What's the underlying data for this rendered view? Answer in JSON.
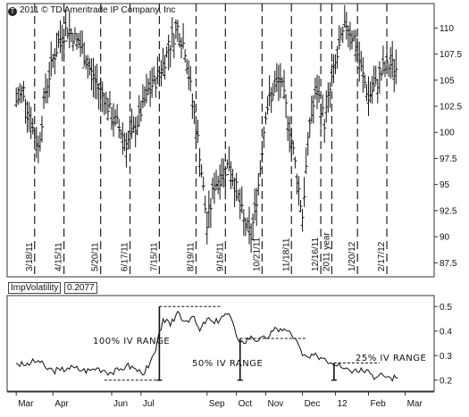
{
  "copyright": "2011 © TD Ameritrade IP Company, Inc",
  "chart_data": [
    {
      "type": "ohlc",
      "price_axis": {
        "ticks": [
          "110",
          "107.5",
          "105",
          "102.5",
          "100",
          "97.5",
          "95",
          "92.5",
          "90",
          "87.5"
        ],
        "ylim": [
          86.5,
          112
        ]
      },
      "date_markers": [
        {
          "label": "3/18/11",
          "x": 2.5
        },
        {
          "label": "4/15/11",
          "x": 6.5
        },
        {
          "label": "5/20/11",
          "x": 11.5
        },
        {
          "label": "6/17/11",
          "x": 15.5
        },
        {
          "label": "7/15/11",
          "x": 19.5
        },
        {
          "label": "8/19/11",
          "x": 24.5
        },
        {
          "label": "9/16/11",
          "x": 28.5
        },
        {
          "label": "10/21/11",
          "x": 33.5
        },
        {
          "label": "11/18/11",
          "x": 37.5
        },
        {
          "label": "12/16/11",
          "x": 41.5
        },
        {
          "label": "2011 year",
          "x": 43.0
        },
        {
          "label": "1/20/12",
          "x": 46.5
        },
        {
          "label": "2/17/12",
          "x": 50.5
        }
      ],
      "series": [
        {
          "points": [
            [
              0,
              103
            ],
            [
              1,
              104
            ],
            [
              2,
              101
            ],
            [
              3,
              98.5
            ],
            [
              4,
              104
            ],
            [
              5,
              107
            ],
            [
              6,
              109
            ],
            [
              7,
              110
            ],
            [
              8,
              109
            ],
            [
              9,
              108
            ],
            [
              10,
              106
            ],
            [
              11,
              104.5
            ],
            [
              12,
              103.5
            ],
            [
              13,
              101.5
            ],
            [
              14,
              100.5
            ],
            [
              15,
              99
            ],
            [
              16,
              100
            ],
            [
              17,
              102
            ],
            [
              18,
              104
            ],
            [
              19,
              105
            ],
            [
              20,
              106.5
            ],
            [
              21,
              108.5
            ],
            [
              22,
              110
            ],
            [
              23,
              108
            ],
            [
              24,
              103
            ],
            [
              25,
              98
            ],
            [
              26,
              91
            ],
            [
              27,
              95
            ],
            [
              28,
              96
            ],
            [
              29,
              97
            ],
            [
              30,
              94.5
            ],
            [
              31,
              91.5
            ],
            [
              32,
              90
            ],
            [
              33,
              95
            ],
            [
              34,
              102
            ],
            [
              35,
              104
            ],
            [
              36,
              105
            ],
            [
              37,
              101.5
            ],
            [
              38,
              97
            ],
            [
              39,
              92
            ],
            [
              40,
              101
            ],
            [
              41,
              104
            ],
            [
              42,
              101
            ],
            [
              43,
              105
            ],
            [
              44,
              108
            ],
            [
              45,
              110.5
            ],
            [
              46,
              109
            ],
            [
              47,
              106
            ],
            [
              48,
              103.5
            ],
            [
              49,
              104.5
            ],
            [
              50,
              106
            ],
            [
              51,
              106.5
            ],
            [
              52,
              106
            ]
          ],
          "x_range": [
            -1,
            55
          ]
        }
      ]
    },
    {
      "type": "line",
      "panel_title": "ImpVolatility",
      "last_value": "0.2077",
      "y_axis": {
        "ticks": [
          "0.5",
          "0.4",
          "0.3",
          "0.2"
        ],
        "ylim": [
          0.17,
          0.53
        ]
      },
      "x_axis": {
        "ticks": [
          "Mar",
          "Apr",
          "Jun",
          "Jul",
          "Sep",
          "Oct",
          "Nov",
          "Dec",
          "12",
          "Feb",
          "Mar"
        ],
        "positions": [
          0,
          5,
          13,
          17,
          26,
          30,
          34,
          39,
          43.5,
          48,
          53
        ]
      },
      "series": [
        {
          "x": [
            0,
            1,
            2,
            3,
            4,
            5,
            6,
            7,
            8,
            9,
            10,
            11,
            12,
            13,
            14,
            15,
            16,
            17,
            18,
            19,
            20,
            21,
            22,
            23,
            24,
            25,
            26,
            27,
            28,
            29,
            30,
            31,
            32,
            33,
            34,
            35,
            36,
            37,
            38,
            39,
            40,
            41,
            42,
            43,
            44,
            45,
            46,
            47,
            48,
            49,
            50,
            51,
            52
          ],
          "y": [
            0.27,
            0.26,
            0.27,
            0.28,
            0.25,
            0.24,
            0.24,
            0.25,
            0.25,
            0.24,
            0.24,
            0.25,
            0.24,
            0.23,
            0.24,
            0.26,
            0.25,
            0.23,
            0.25,
            0.32,
            0.45,
            0.42,
            0.48,
            0.44,
            0.46,
            0.4,
            0.45,
            0.43,
            0.46,
            0.47,
            0.38,
            0.35,
            0.38,
            0.36,
            0.37,
            0.4,
            0.41,
            0.4,
            0.37,
            0.3,
            0.29,
            0.3,
            0.29,
            0.27,
            0.27,
            0.25,
            0.24,
            0.25,
            0.24,
            0.21,
            0.22,
            0.21,
            0.21
          ]
        }
      ],
      "annotations": [
        {
          "label": "100% IV RANGE",
          "low": 0.2,
          "high": 0.5
        },
        {
          "label": "50% IV RANGE",
          "low": 0.2,
          "high": 0.37
        },
        {
          "label": "25% IV RANGE",
          "low": 0.2,
          "high": 0.27
        }
      ]
    }
  ]
}
